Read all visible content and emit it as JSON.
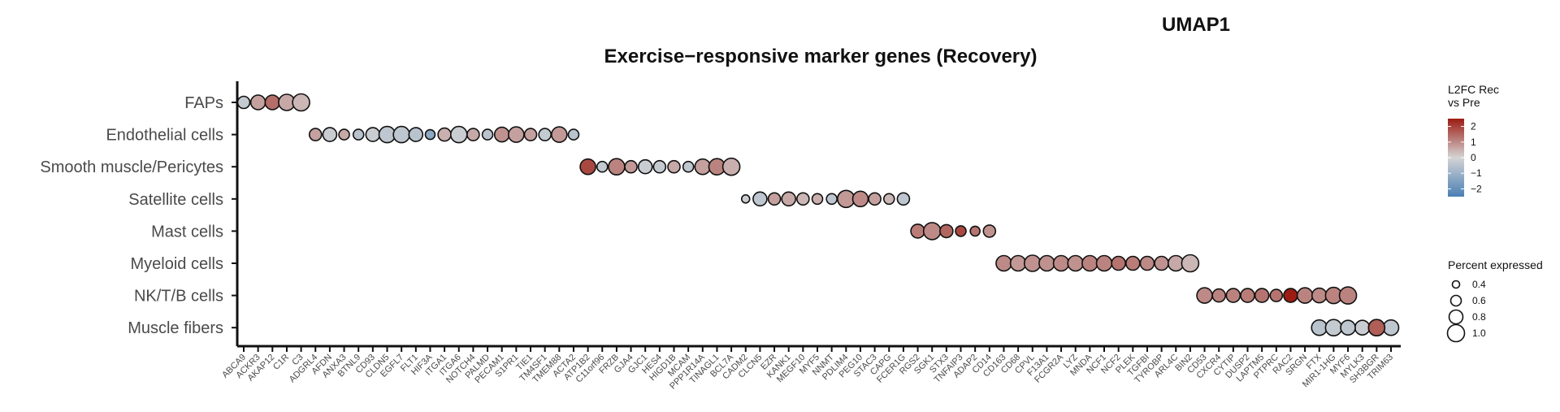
{
  "chart_data": {
    "type": "scatter",
    "title": "Exercise−responsive marker genes (Recovery)",
    "corner_label": "UMAP1",
    "categories_y": [
      "FAPs",
      "Endothelial cells",
      "Smooth muscle/Pericytes",
      "Satellite cells",
      "Mast cells",
      "Myeloid cells",
      "NK/T/B cells",
      "Muscle fibers"
    ],
    "genes_x": [
      "ABCA9",
      "ACKR3",
      "AKAP12",
      "C1R",
      "C3",
      "ADGRL4",
      "AFDN",
      "ANXA3",
      "BTNL9",
      "CD93",
      "CLDN5",
      "EGFL7",
      "FLT1",
      "HIF3A",
      "ITGA1",
      "ITGA6",
      "NOTCH4",
      "PALMD",
      "PECAM1",
      "S1PR1",
      "TIE1",
      "TM4SF1",
      "TMEM88",
      "ACTA2",
      "ATP1B2",
      "C11orf96",
      "FRZB",
      "GJA4",
      "GJC1",
      "HES4",
      "HIGD1B",
      "MCAM",
      "PPP1R14A",
      "TINAGL1",
      "BCL7A",
      "CADM2",
      "CLCN5",
      "EZR",
      "KANK1",
      "MEGF10",
      "MYF5",
      "NNMT",
      "PDLIM4",
      "PEG10",
      "STAC3",
      "CAPG",
      "FCER1G",
      "RGS2",
      "SGK1",
      "STX3",
      "TNFAIP3",
      "ADAP2",
      "CD14",
      "CD163",
      "CD68",
      "CPVL",
      "F13A1",
      "FCGR2A",
      "LYZ",
      "MNDA",
      "NCF1",
      "NCF2",
      "PLEK",
      "TGFBI",
      "TYROBP",
      "ARL4C",
      "BIN2",
      "CD53",
      "CXCR4",
      "CYTIP",
      "DUSP2",
      "LAPTM5",
      "PTPRC",
      "RAC2",
      "SRGN",
      "FTX",
      "MIR1-1HG",
      "MYF6",
      "MYLK3",
      "SH3BGR",
      "TRIM63"
    ],
    "points": [
      {
        "gene": "ABCA9",
        "cell": "FAPs",
        "l2fc": -0.3,
        "pct": 0.7
      },
      {
        "gene": "ACKR3",
        "cell": "FAPs",
        "l2fc": 0.7,
        "pct": 0.85
      },
      {
        "gene": "AKAP12",
        "cell": "FAPs",
        "l2fc": 1.4,
        "pct": 0.85
      },
      {
        "gene": "C1R",
        "cell": "FAPs",
        "l2fc": 0.6,
        "pct": 0.95
      },
      {
        "gene": "C3",
        "cell": "FAPs",
        "l2fc": 0.4,
        "pct": 1.0
      },
      {
        "gene": "ADGRL4",
        "cell": "Endothelial cells",
        "l2fc": 0.7,
        "pct": 0.7
      },
      {
        "gene": "AFDN",
        "cell": "Endothelial cells",
        "l2fc": -0.2,
        "pct": 0.8
      },
      {
        "gene": "ANXA3",
        "cell": "Endothelial cells",
        "l2fc": 0.6,
        "pct": 0.6
      },
      {
        "gene": "BTNL9",
        "cell": "Endothelial cells",
        "l2fc": -0.5,
        "pct": 0.6
      },
      {
        "gene": "CD93",
        "cell": "Endothelial cells",
        "l2fc": -0.2,
        "pct": 0.8
      },
      {
        "gene": "CLDN5",
        "cell": "Endothelial cells",
        "l2fc": -0.4,
        "pct": 0.95
      },
      {
        "gene": "EGFL7",
        "cell": "Endothelial cells",
        "l2fc": -0.4,
        "pct": 0.95
      },
      {
        "gene": "FLT1",
        "cell": "Endothelial cells",
        "l2fc": -0.5,
        "pct": 0.8
      },
      {
        "gene": "HIF3A",
        "cell": "Endothelial cells",
        "l2fc": -1.3,
        "pct": 0.55
      },
      {
        "gene": "ITGA1",
        "cell": "Endothelial cells",
        "l2fc": 0.5,
        "pct": 0.75
      },
      {
        "gene": "ITGA6",
        "cell": "Endothelial cells",
        "l2fc": -0.2,
        "pct": 0.95
      },
      {
        "gene": "NOTCH4",
        "cell": "Endothelial cells",
        "l2fc": 0.6,
        "pct": 0.7
      },
      {
        "gene": "PALMD",
        "cell": "Endothelial cells",
        "l2fc": -0.5,
        "pct": 0.6
      },
      {
        "gene": "PECAM1",
        "cell": "Endothelial cells",
        "l2fc": 0.9,
        "pct": 0.85
      },
      {
        "gene": "S1PR1",
        "cell": "Endothelial cells",
        "l2fc": 0.7,
        "pct": 0.9
      },
      {
        "gene": "TIE1",
        "cell": "Endothelial cells",
        "l2fc": 0.7,
        "pct": 0.7
      },
      {
        "gene": "TM4SF1",
        "cell": "Endothelial cells",
        "l2fc": -0.3,
        "pct": 0.7
      },
      {
        "gene": "TMEM88",
        "cell": "Endothelial cells",
        "l2fc": 0.8,
        "pct": 0.9
      },
      {
        "gene": "ACTA2",
        "cell": "Endothelial cells",
        "l2fc": -0.5,
        "pct": 0.6
      },
      {
        "gene": "ATP1B2",
        "cell": "Smooth muscle/Pericytes",
        "l2fc": 1.9,
        "pct": 0.9
      },
      {
        "gene": "C11orf96",
        "cell": "Smooth muscle/Pericytes",
        "l2fc": -0.3,
        "pct": 0.6
      },
      {
        "gene": "FRZB",
        "cell": "Smooth muscle/Pericytes",
        "l2fc": 1.1,
        "pct": 0.95
      },
      {
        "gene": "GJA4",
        "cell": "Smooth muscle/Pericytes",
        "l2fc": 0.8,
        "pct": 0.7
      },
      {
        "gene": "GJC1",
        "cell": "Smooth muscle/Pericytes",
        "l2fc": -0.2,
        "pct": 0.8
      },
      {
        "gene": "HES4",
        "cell": "Smooth muscle/Pericytes",
        "l2fc": -0.3,
        "pct": 0.7
      },
      {
        "gene": "HIGD1B",
        "cell": "Smooth muscle/Pericytes",
        "l2fc": 0.6,
        "pct": 0.7
      },
      {
        "gene": "MCAM",
        "cell": "Smooth muscle/Pericytes",
        "l2fc": -0.4,
        "pct": 0.6
      },
      {
        "gene": "PPP1R14A",
        "cell": "Smooth muscle/Pericytes",
        "l2fc": 0.7,
        "pct": 0.9
      },
      {
        "gene": "TINAGL1",
        "cell": "Smooth muscle/Pericytes",
        "l2fc": 1.1,
        "pct": 0.95
      },
      {
        "gene": "BCL7A",
        "cell": "Smooth muscle/Pericytes",
        "l2fc": 0.5,
        "pct": 1.0
      },
      {
        "gene": "CADM2",
        "cell": "Satellite cells",
        "l2fc": -0.2,
        "pct": 0.45
      },
      {
        "gene": "CLCN5",
        "cell": "Satellite cells",
        "l2fc": -0.4,
        "pct": 0.8
      },
      {
        "gene": "EZR",
        "cell": "Satellite cells",
        "l2fc": 0.7,
        "pct": 0.7
      },
      {
        "gene": "KANK1",
        "cell": "Satellite cells",
        "l2fc": 0.6,
        "pct": 0.8
      },
      {
        "gene": "MEGF10",
        "cell": "Satellite cells",
        "l2fc": 0.4,
        "pct": 0.7
      },
      {
        "gene": "MYF5",
        "cell": "Satellite cells",
        "l2fc": 0.5,
        "pct": 0.6
      },
      {
        "gene": "NNMT",
        "cell": "Satellite cells",
        "l2fc": -0.4,
        "pct": 0.6
      },
      {
        "gene": "PDLIM4",
        "cell": "Satellite cells",
        "l2fc": 0.8,
        "pct": 1.0
      },
      {
        "gene": "PEG10",
        "cell": "Satellite cells",
        "l2fc": 1.0,
        "pct": 0.9
      },
      {
        "gene": "STAC3",
        "cell": "Satellite cells",
        "l2fc": 0.7,
        "pct": 0.7
      },
      {
        "gene": "CAPG",
        "cell": "Satellite cells",
        "l2fc": 0.4,
        "pct": 0.6
      },
      {
        "gene": "FCER1G",
        "cell": "Satellite cells",
        "l2fc": -0.4,
        "pct": 0.7
      },
      {
        "gene": "RGS2",
        "cell": "Mast cells",
        "l2fc": 1.2,
        "pct": 0.8
      },
      {
        "gene": "SGK1",
        "cell": "Mast cells",
        "l2fc": 1.0,
        "pct": 1.0
      },
      {
        "gene": "STX3",
        "cell": "Mast cells",
        "l2fc": 1.5,
        "pct": 0.75
      },
      {
        "gene": "TNFAIP3",
        "cell": "Mast cells",
        "l2fc": 1.9,
        "pct": 0.6
      },
      {
        "gene": "ADAP2",
        "cell": "Mast cells",
        "l2fc": 1.3,
        "pct": 0.55
      },
      {
        "gene": "CD14",
        "cell": "Mast cells",
        "l2fc": 0.9,
        "pct": 0.7
      },
      {
        "gene": "CD163",
        "cell": "Myeloid cells",
        "l2fc": 1.0,
        "pct": 0.9
      },
      {
        "gene": "CD68",
        "cell": "Myeloid cells",
        "l2fc": 0.8,
        "pct": 0.9
      },
      {
        "gene": "CPVL",
        "cell": "Myeloid cells",
        "l2fc": 0.9,
        "pct": 0.95
      },
      {
        "gene": "F13A1",
        "cell": "Myeloid cells",
        "l2fc": 0.9,
        "pct": 0.9
      },
      {
        "gene": "FCGR2A",
        "cell": "Myeloid cells",
        "l2fc": 1.0,
        "pct": 0.9
      },
      {
        "gene": "LYZ",
        "cell": "Myeloid cells",
        "l2fc": 0.9,
        "pct": 0.9
      },
      {
        "gene": "MNDA",
        "cell": "Myeloid cells",
        "l2fc": 1.1,
        "pct": 0.9
      },
      {
        "gene": "NCF1",
        "cell": "Myeloid cells",
        "l2fc": 1.1,
        "pct": 0.9
      },
      {
        "gene": "NCF2",
        "cell": "Myeloid cells",
        "l2fc": 1.3,
        "pct": 0.8
      },
      {
        "gene": "PLEK",
        "cell": "Myeloid cells",
        "l2fc": 1.2,
        "pct": 0.8
      },
      {
        "gene": "TGFBI",
        "cell": "Myeloid cells",
        "l2fc": 1.0,
        "pct": 0.8
      },
      {
        "gene": "TYROBP",
        "cell": "Myeloid cells",
        "l2fc": 0.9,
        "pct": 0.8
      },
      {
        "gene": "ARL4C",
        "cell": "Myeloid cells",
        "l2fc": 0.6,
        "pct": 0.9
      },
      {
        "gene": "BIN2",
        "cell": "Myeloid cells",
        "l2fc": 0.4,
        "pct": 1.0
      },
      {
        "gene": "CD53",
        "cell": "NK/T/B cells",
        "l2fc": 1.0,
        "pct": 0.9
      },
      {
        "gene": "CXCR4",
        "cell": "NK/T/B cells",
        "l2fc": 1.1,
        "pct": 0.75
      },
      {
        "gene": "CYTIP",
        "cell": "NK/T/B cells",
        "l2fc": 1.1,
        "pct": 0.8
      },
      {
        "gene": "DUSP2",
        "cell": "NK/T/B cells",
        "l2fc": 1.2,
        "pct": 0.8
      },
      {
        "gene": "LAPTM5",
        "cell": "NK/T/B cells",
        "l2fc": 1.3,
        "pct": 0.8
      },
      {
        "gene": "PTPRC",
        "cell": "NK/T/B cells",
        "l2fc": 1.3,
        "pct": 0.7
      },
      {
        "gene": "RAC2",
        "cell": "NK/T/B cells",
        "l2fc": 2.6,
        "pct": 0.8
      },
      {
        "gene": "SRGN",
        "cell": "NK/T/B cells",
        "l2fc": 1.1,
        "pct": 0.9
      },
      {
        "gene": "FTX",
        "cell": "NK/T/B cells",
        "l2fc": 1.0,
        "pct": 0.85
      },
      {
        "gene": "MIR1-1HG",
        "cell": "NK/T/B cells",
        "l2fc": 1.1,
        "pct": 0.95
      },
      {
        "gene": "MYF6",
        "cell": "NK/T/B cells",
        "l2fc": 1.1,
        "pct": 1.0
      },
      {
        "gene": "MYLK3",
        "cell": "Muscle fibers",
        "l2fc": -0.2,
        "pct": 0.85
      },
      {
        "gene": "SH3BGR",
        "cell": "Muscle fibers",
        "l2fc": -0.3,
        "pct": 0.95
      },
      {
        "gene": "TRIM63",
        "cell": "Muscle fibers",
        "l2fc": -0.4,
        "pct": 0.9
      },
      {
        "gene": "FTX",
        "cell": "Muscle fibers",
        "l2fc": -0.5,
        "pct": 0.9
      },
      {
        "gene": "MIR1-1HG",
        "cell": "Muscle fibers",
        "l2fc": -0.3,
        "pct": 0.95
      },
      {
        "gene": "MYF6",
        "cell": "Muscle fibers",
        "l2fc": -0.4,
        "pct": 0.85
      },
      {
        "gene": "SH3BGR",
        "cell": "Muscle fibers",
        "l2fc": 1.6,
        "pct": 0.95
      }
    ],
    "color_legend": {
      "title": "L2FC Rec\nvs Pre",
      "min": -2.5,
      "max": 2.5,
      "ticks": [
        2,
        1,
        0,
        -1,
        -2
      ],
      "tick_labels": [
        "2",
        "1",
        "0",
        "−1",
        "−2"
      ],
      "low_color": "#4a7fb5",
      "mid_color": "#d4d4d4",
      "high_color": "#9b1c13"
    },
    "size_legend": {
      "title": "Percent expressed",
      "values": [
        0.4,
        0.6,
        0.8,
        1.0
      ],
      "labels": [
        "0.4",
        "0.6",
        "0.8",
        "1.0"
      ]
    },
    "grid": false,
    "legend_position": "right"
  }
}
